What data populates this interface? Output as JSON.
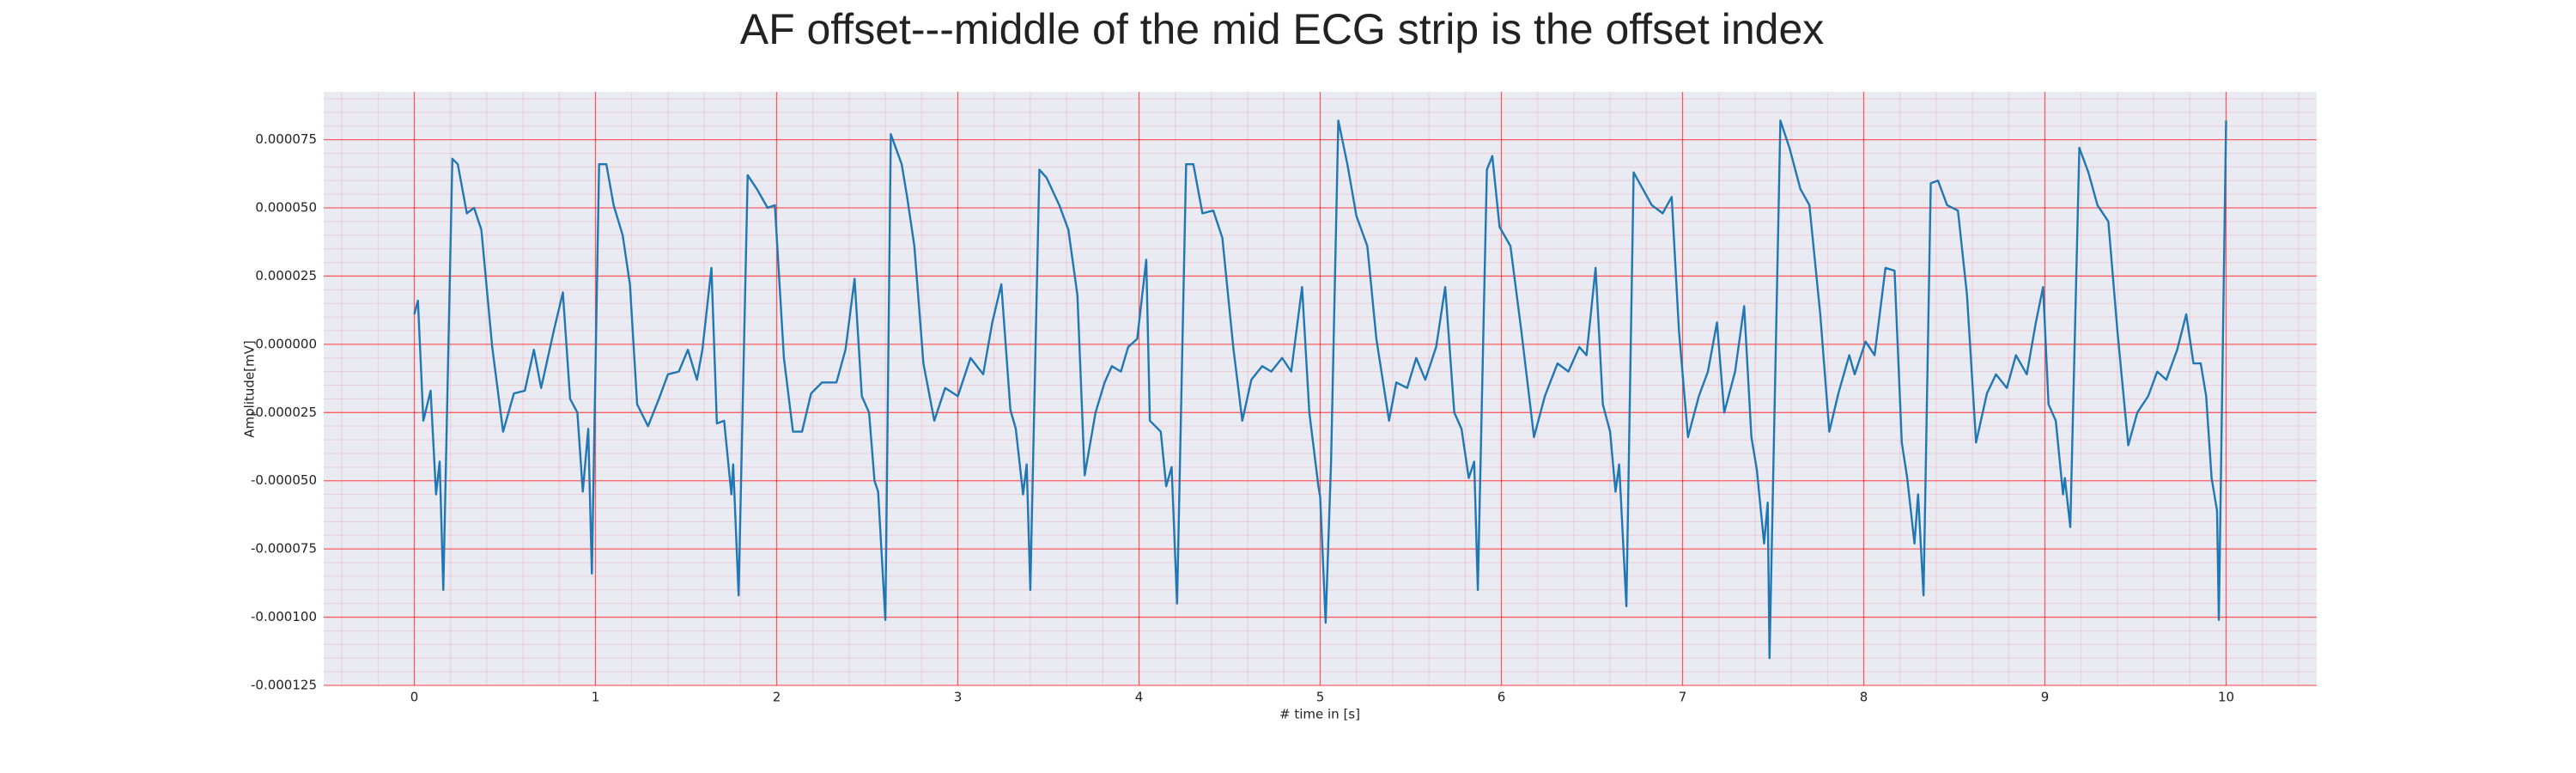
{
  "chart_data": {
    "type": "line",
    "title": "AF offset---middle of the mid ECG strip is the offset index",
    "xlabel": "# time in [s]",
    "ylabel": "Amplitude[mV]",
    "color": "#1f77b4",
    "grid": true,
    "minor_grid": true,
    "grid_color": "#ff0000",
    "xlim": [
      -0.5,
      10.5
    ],
    "xticks": [
      0,
      1,
      2,
      3,
      4,
      5,
      6,
      7,
      8,
      9,
      10
    ],
    "ylim": [
      -0.000125,
      9.25e-05
    ],
    "yticks": [
      7.5e-05,
      {
        "value": 5e-05,
        "label": "0.000050"
      },
      2.5e-05,
      {
        "value": 0,
        "label": "0.000000"
      },
      -2.5e-05,
      {
        "value": -5e-05,
        "label": "-0.000050"
      },
      -7.5e-05,
      {
        "value": -0.0001,
        "label": "-0.000100"
      },
      -0.000125
    ],
    "x": [
      0.0,
      0.02,
      0.05,
      0.09,
      0.12,
      0.14,
      0.16,
      0.21,
      0.24,
      0.29,
      0.33,
      0.37,
      0.43,
      0.49,
      0.55,
      0.61,
      0.66,
      0.7,
      0.77,
      0.82,
      0.86,
      0.9,
      0.93,
      0.96,
      0.98,
      1.02,
      1.06,
      1.1,
      1.15,
      1.19,
      1.23,
      1.29,
      1.35,
      1.4,
      1.46,
      1.51,
      1.56,
      1.59,
      1.64,
      1.67,
      1.71,
      1.75,
      1.76,
      1.79,
      1.84,
      1.89,
      1.95,
      1.99,
      2.04,
      2.09,
      2.14,
      2.19,
      2.25,
      2.33,
      2.38,
      2.43,
      2.47,
      2.51,
      2.54,
      2.56,
      2.6,
      2.63,
      2.69,
      2.72,
      2.76,
      2.81,
      2.87,
      2.93,
      3.0,
      3.07,
      3.14,
      3.19,
      3.24,
      3.29,
      3.32,
      3.36,
      3.38,
      3.4,
      3.45,
      3.49,
      3.56,
      3.61,
      3.66,
      3.7,
      3.76,
      3.81,
      3.85,
      3.9,
      3.94,
      3.99,
      4.04,
      4.06,
      4.12,
      4.15,
      4.18,
      4.21,
      4.26,
      4.3,
      4.35,
      4.41,
      4.46,
      4.52,
      4.57,
      4.62,
      4.68,
      4.73,
      4.79,
      4.84,
      4.9,
      4.94,
      4.99,
      5.0,
      5.03,
      5.06,
      5.1,
      5.15,
      5.2,
      5.26,
      5.31,
      5.38,
      5.42,
      5.48,
      5.53,
      5.58,
      5.64,
      5.69,
      5.74,
      5.78,
      5.82,
      5.85,
      5.87,
      5.92,
      5.95,
      5.99,
      6.05,
      6.11,
      6.18,
      6.24,
      6.31,
      6.37,
      6.43,
      6.47,
      6.52,
      6.56,
      6.6,
      6.63,
      6.65,
      6.69,
      6.73,
      6.78,
      6.83,
      6.89,
      6.94,
      6.98,
      7.03,
      7.09,
      7.14,
      7.19,
      7.23,
      7.29,
      7.34,
      7.38,
      7.41,
      7.45,
      7.47,
      7.48,
      7.54,
      7.59,
      7.65,
      7.7,
      7.76,
      7.81,
      7.86,
      7.92,
      7.95,
      8.01,
      8.06,
      8.12,
      8.17,
      8.21,
      8.24,
      8.28,
      8.3,
      8.33,
      8.37,
      8.41,
      8.46,
      8.52,
      8.57,
      8.62,
      8.68,
      8.73,
      8.79,
      8.84,
      8.9,
      8.95,
      8.99,
      9.02,
      9.06,
      9.1,
      9.11,
      9.14,
      9.19,
      9.24,
      9.29,
      9.35,
      9.4,
      9.46,
      9.51,
      9.57,
      9.62,
      9.67,
      9.73,
      9.78,
      9.82,
      9.86,
      9.89,
      9.92,
      9.95,
      9.96,
      10.0
    ],
    "values": [
      1.1e-05,
      1.6e-05,
      -2.8e-05,
      -1.7e-05,
      -5.5e-05,
      -4.3e-05,
      -9e-05,
      6.8e-05,
      6.6e-05,
      4.8e-05,
      5e-05,
      4.2e-05,
      -1e-06,
      -3.2e-05,
      -1.8e-05,
      -1.7e-05,
      -2e-06,
      -1.6e-05,
      5e-06,
      1.9e-05,
      -2e-05,
      -2.5e-05,
      -5.4e-05,
      -3.1e-05,
      -8.4e-05,
      6.6e-05,
      6.6e-05,
      5.1e-05,
      4e-05,
      2.2e-05,
      -2.2e-05,
      -3e-05,
      -2e-05,
      -1.1e-05,
      -1e-05,
      -2e-06,
      -1.3e-05,
      -2e-06,
      2.8e-05,
      -2.9e-05,
      -2.8e-05,
      -5.5e-05,
      -4.4e-05,
      -9.2e-05,
      6.2e-05,
      5.7e-05,
      5e-05,
      5.1e-05,
      -5e-06,
      -3.2e-05,
      -3.2e-05,
      -1.8e-05,
      -1.4e-05,
      -1.4e-05,
      -2e-06,
      2.4e-05,
      -1.9e-05,
      -2.5e-05,
      -5e-05,
      -5.4e-05,
      -0.000101,
      7.7e-05,
      6.6e-05,
      5.4e-05,
      3.6e-05,
      -7e-06,
      -2.8e-05,
      -1.6e-05,
      -1.9e-05,
      -5e-06,
      -1.1e-05,
      8e-06,
      2.2e-05,
      -2.4e-05,
      -3.1e-05,
      -5.5e-05,
      -4.4e-05,
      -9e-05,
      6.4e-05,
      6.1e-05,
      5.1e-05,
      4.2e-05,
      1.8e-05,
      -4.8e-05,
      -2.5e-05,
      -1.4e-05,
      -8e-06,
      -1e-05,
      -1e-06,
      2e-06,
      3.1e-05,
      -2.8e-05,
      -3.2e-05,
      -5.2e-05,
      -4.5e-05,
      -9.5e-05,
      6.6e-05,
      6.6e-05,
      4.8e-05,
      4.9e-05,
      3.9e-05,
      -1e-06,
      -2.8e-05,
      -1.3e-05,
      -8e-06,
      -1e-05,
      -5e-06,
      -1e-05,
      2.1e-05,
      -2.5e-05,
      -5.2e-05,
      -5.6e-05,
      -0.000102,
      -4.3e-05,
      8.2e-05,
      6.6e-05,
      4.7e-05,
      3.6e-05,
      2e-06,
      -2.8e-05,
      -1.4e-05,
      -1.6e-05,
      -5e-06,
      -1.3e-05,
      -1e-06,
      2.1e-05,
      -2.5e-05,
      -3.1e-05,
      -4.9e-05,
      -4.3e-05,
      -9e-05,
      6.4e-05,
      6.9e-05,
      4.3e-05,
      3.6e-05,
      5e-06,
      -3.4e-05,
      -1.9e-05,
      -7e-06,
      -1e-05,
      -1e-06,
      -4e-06,
      2.8e-05,
      -2.2e-05,
      -3.2e-05,
      -5.4e-05,
      -4.4e-05,
      -9.6e-05,
      6.3e-05,
      5.7e-05,
      5.1e-05,
      4.8e-05,
      5.4e-05,
      5e-06,
      -3.4e-05,
      -1.9e-05,
      -1e-05,
      8e-06,
      -2.5e-05,
      -1e-05,
      1.4e-05,
      -3.4e-05,
      -4.6e-05,
      -7.3e-05,
      -5.8e-05,
      -0.000115,
      8.2e-05,
      7.2e-05,
      5.7e-05,
      5.1e-05,
      1.1e-05,
      -3.2e-05,
      -1.8e-05,
      -4e-06,
      -1.1e-05,
      1e-06,
      -4e-06,
      2.8e-05,
      2.7e-05,
      -3.6e-05,
      -4.9e-05,
      -7.3e-05,
      -5.5e-05,
      -9.2e-05,
      5.9e-05,
      6e-05,
      5.1e-05,
      4.9e-05,
      1.8e-05,
      -3.6e-05,
      -1.8e-05,
      -1.1e-05,
      -1.6e-05,
      -4e-06,
      -1.1e-05,
      8e-06,
      2.1e-05,
      -2.2e-05,
      -2.8e-05,
      -5.5e-05,
      -4.9e-05,
      -6.7e-05,
      7.2e-05,
      6.3e-05,
      5.1e-05,
      4.5e-05,
      5e-06,
      -3.7e-05,
      -2.5e-05,
      -1.9e-05,
      -1e-05,
      -1.3e-05,
      -2e-06,
      1.1e-05,
      -7e-06,
      -7e-06,
      -1.9e-05,
      -4.9e-05,
      -6.1e-05,
      -0.000101,
      8.2e-05
    ]
  }
}
